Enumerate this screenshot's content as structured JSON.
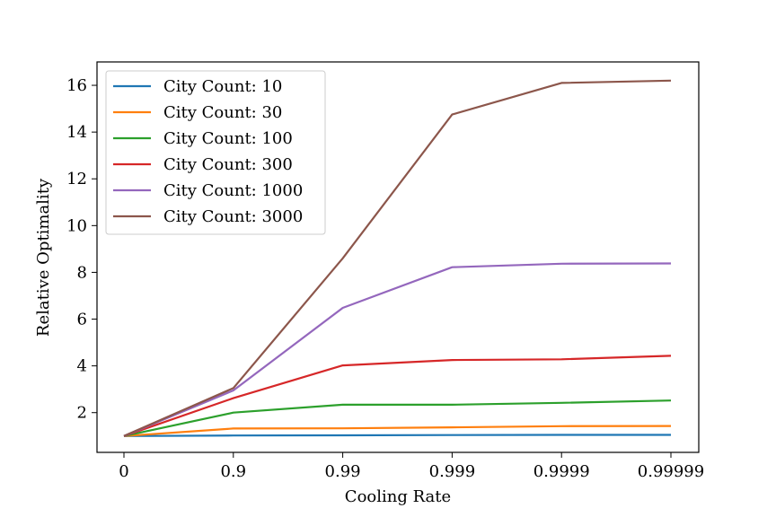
{
  "chart_data": {
    "type": "line",
    "title": "",
    "xlabel": "Cooling Rate",
    "ylabel": "Relative Optimality",
    "categories": [
      "0",
      "0.9",
      "0.99",
      "0.999",
      "0.9999",
      "0.99999"
    ],
    "ylim": [
      0.3,
      17.0
    ],
    "yticks": [
      "2",
      "4",
      "6",
      "8",
      "10",
      "12",
      "14",
      "16"
    ],
    "grid": false,
    "legend_position": "top-left",
    "series": [
      {
        "name": "City Count: 10",
        "color": "#1f77b4",
        "values": [
          1.0,
          1.02,
          1.03,
          1.04,
          1.05,
          1.05
        ]
      },
      {
        "name": "City Count: 30",
        "color": "#ff7f0e",
        "values": [
          1.0,
          1.32,
          1.33,
          1.37,
          1.42,
          1.43
        ]
      },
      {
        "name": "City Count: 100",
        "color": "#2ca02c",
        "values": [
          1.0,
          2.0,
          2.34,
          2.34,
          2.42,
          2.52
        ]
      },
      {
        "name": "City Count: 300",
        "color": "#d62728",
        "values": [
          1.0,
          2.62,
          4.02,
          4.25,
          4.28,
          4.43
        ]
      },
      {
        "name": "City Count: 1000",
        "color": "#9467bd",
        "values": [
          1.0,
          2.95,
          6.48,
          8.22,
          8.37,
          8.38
        ]
      },
      {
        "name": "City Count: 3000",
        "color": "#8c564b",
        "values": [
          1.0,
          3.05,
          8.6,
          14.75,
          16.1,
          16.2
        ]
      }
    ]
  }
}
